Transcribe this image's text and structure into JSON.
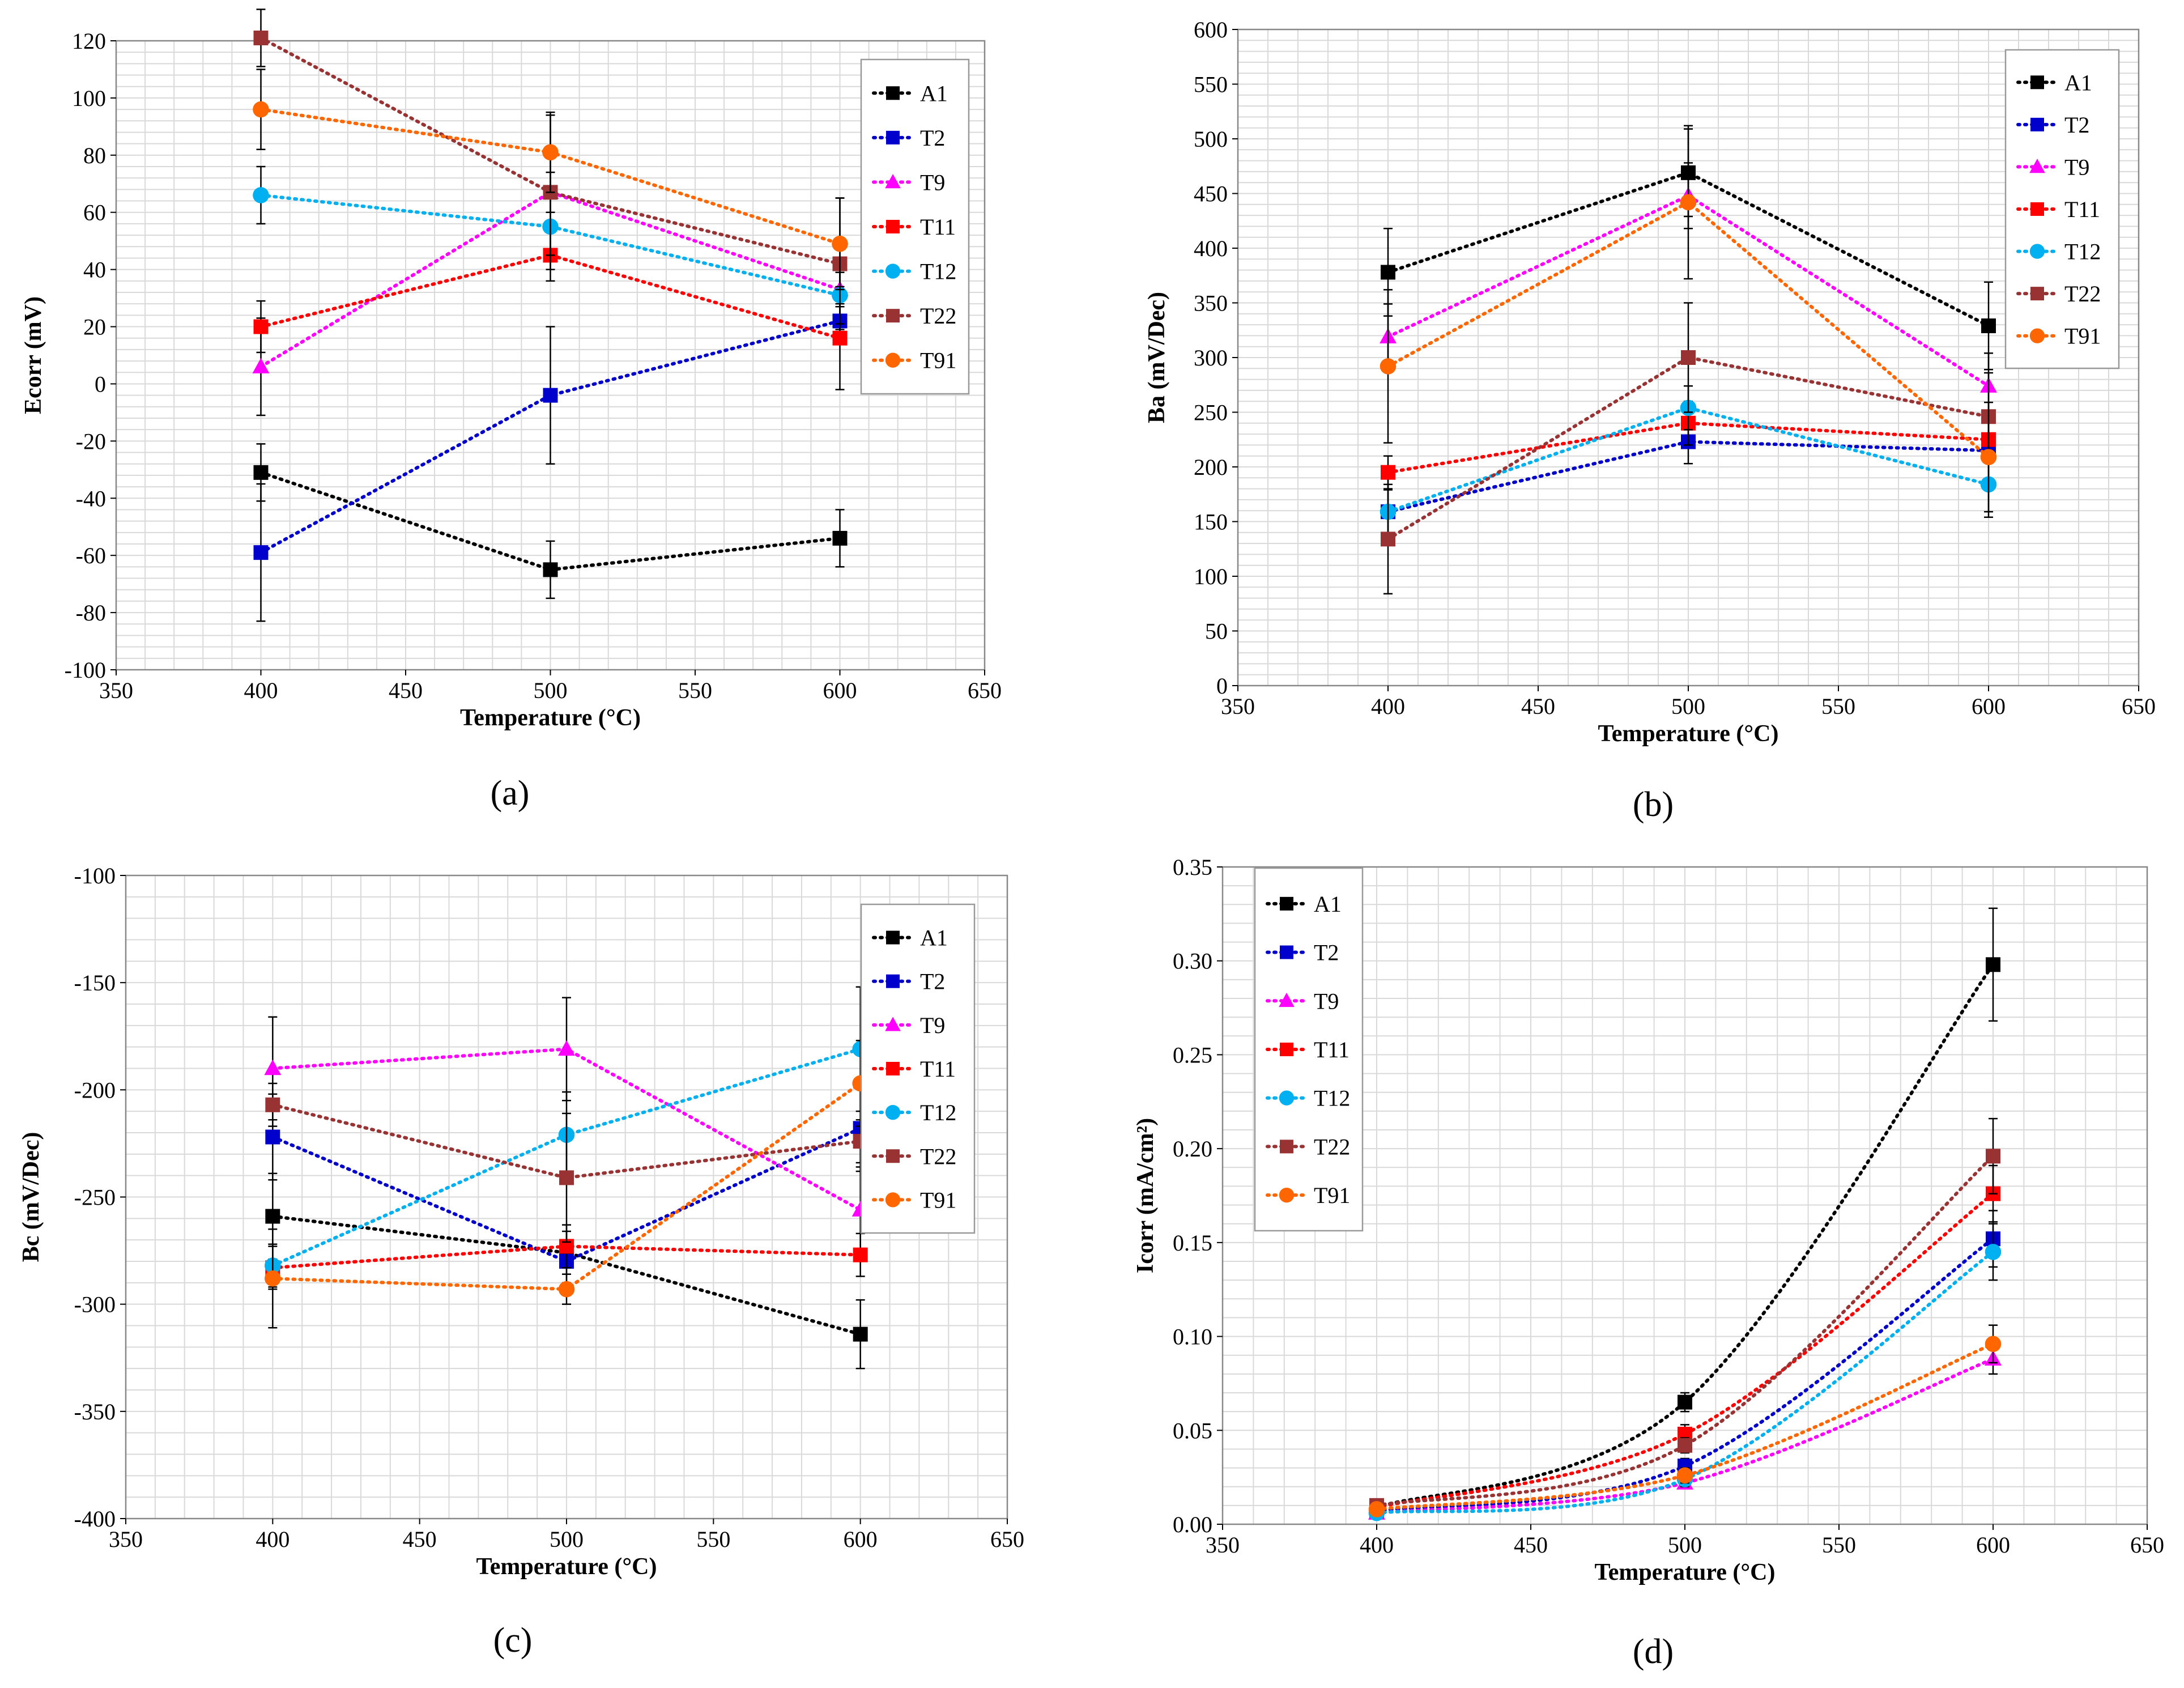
{
  "chart_data": [
    {
      "id": "a",
      "type": "line",
      "caption": "(a)",
      "xlabel": "Temperature (°C)",
      "ylabel": "Ecorr (mV)",
      "xlim": [
        350,
        650
      ],
      "ylim": [
        -100,
        120
      ],
      "xticks": [
        350,
        400,
        450,
        500,
        550,
        600,
        650
      ],
      "xtick_labels": [
        "350",
        "400",
        "450",
        "500",
        "550",
        "600",
        "650"
      ],
      "yticks": [
        -100,
        -80,
        -60,
        -40,
        -20,
        0,
        20,
        40,
        60,
        80,
        100,
        120
      ],
      "ytick_labels": [
        "-100",
        "-80",
        "-60",
        "-40",
        "-20",
        "0",
        "20",
        "40",
        "60",
        "80",
        "100",
        "120"
      ],
      "grid": true,
      "legend": "top-right",
      "x": [
        400,
        500,
        600
      ],
      "series": [
        {
          "name": "A1",
          "color": "#000000",
          "marker": "square",
          "values": [
            -31,
            -65,
            -54
          ],
          "err": [
            10,
            10,
            10
          ]
        },
        {
          "name": "T2",
          "color": "#0000cc",
          "marker": "square",
          "values": [
            -59,
            -4,
            22
          ],
          "err": [
            24,
            24,
            6
          ]
        },
        {
          "name": "T9",
          "color": "#ff00ff",
          "marker": "triangle",
          "values": [
            6,
            67,
            33
          ],
          "err": [
            17,
            7,
            6
          ]
        },
        {
          "name": "T11",
          "color": "#ff0000",
          "marker": "square",
          "values": [
            20,
            45,
            16
          ],
          "err": [
            9,
            9,
            18
          ]
        },
        {
          "name": "T12",
          "color": "#00b0f0",
          "marker": "circle",
          "values": [
            66,
            55,
            31
          ],
          "err": [
            10,
            10,
            10
          ]
        },
        {
          "name": "T22",
          "color": "#993333",
          "marker": "square",
          "values": [
            121,
            67,
            42
          ],
          "err": [
            10,
            27,
            23
          ]
        },
        {
          "name": "T91",
          "color": "#ff6600",
          "marker": "circle",
          "values": [
            96,
            81,
            49
          ],
          "err": [
            14,
            14,
            16
          ]
        }
      ]
    },
    {
      "id": "b",
      "type": "line",
      "caption": "(b)",
      "xlabel": "Temperature (°C)",
      "ylabel": "Ba (mV/Dec)",
      "xlim": [
        350,
        650
      ],
      "ylim": [
        0,
        600
      ],
      "xticks": [
        350,
        400,
        450,
        500,
        550,
        600,
        650
      ],
      "xtick_labels": [
        "350",
        "400",
        "450",
        "500",
        "550",
        "600",
        "650"
      ],
      "yticks": [
        0,
        50,
        100,
        150,
        200,
        250,
        300,
        350,
        400,
        450,
        500,
        550,
        600
      ],
      "ytick_labels": [
        "0",
        "50",
        "100",
        "150",
        "200",
        "250",
        "300",
        "350",
        "400",
        "450",
        "500",
        "550",
        "600"
      ],
      "grid": true,
      "legend": "top-right",
      "x": [
        400,
        500,
        600
      ],
      "series": [
        {
          "name": "A1",
          "color": "#000000",
          "marker": "square",
          "values": [
            378,
            469,
            329
          ],
          "err": [
            40,
            40,
            40
          ]
        },
        {
          "name": "T2",
          "color": "#0000cc",
          "marker": "square",
          "values": [
            159,
            223,
            215
          ],
          "err": [
            30,
            20,
            30
          ]
        },
        {
          "name": "T9",
          "color": "#ff00ff",
          "marker": "triangle",
          "values": [
            319,
            448,
            274
          ],
          "err": [
            30,
            30,
            30
          ]
        },
        {
          "name": "T11",
          "color": "#ff0000",
          "marker": "square",
          "values": [
            195,
            240,
            225
          ],
          "err": [
            15,
            20,
            20
          ]
        },
        {
          "name": "T12",
          "color": "#00b0f0",
          "marker": "circle",
          "values": [
            159,
            254,
            184
          ],
          "err": [
            20,
            20,
            30
          ]
        },
        {
          "name": "T22",
          "color": "#993333",
          "marker": "square",
          "values": [
            134,
            300,
            246
          ],
          "err": [
            50,
            50,
            40
          ]
        },
        {
          "name": "T91",
          "color": "#ff6600",
          "marker": "circle",
          "values": [
            292,
            442,
            209
          ],
          "err": [
            70,
            70,
            50
          ]
        }
      ]
    },
    {
      "id": "c",
      "type": "line",
      "caption": "(c)",
      "xlabel": "Temperature (°C)",
      "ylabel": "Bc (mV/Dec)",
      "xlim": [
        350,
        650
      ],
      "ylim": [
        -400,
        -100
      ],
      "xticks": [
        350,
        400,
        450,
        500,
        550,
        600,
        650
      ],
      "xtick_labels": [
        "350",
        "400",
        "450",
        "500",
        "550",
        "600",
        "650"
      ],
      "yticks": [
        -400,
        -350,
        -300,
        -250,
        -200,
        -150,
        -100
      ],
      "ytick_labels": [
        "-400",
        "-350",
        "-300",
        "-250",
        "-200",
        "-150",
        "-100"
      ],
      "grid": true,
      "legend": "top-right",
      "x": [
        400,
        500,
        600
      ],
      "series": [
        {
          "name": "A1",
          "color": "#000000",
          "marker": "square",
          "values": [
            -259,
            -276,
            -314
          ],
          "err": [
            20,
            10,
            16
          ]
        },
        {
          "name": "T2",
          "color": "#0000cc",
          "marker": "square",
          "values": [
            -222,
            -280,
            -218
          ],
          "err": [
            20,
            10,
            20
          ]
        },
        {
          "name": "T9",
          "color": "#ff00ff",
          "marker": "triangle",
          "values": [
            -190,
            -181,
            -256
          ],
          "err": [
            24,
            24,
            20
          ]
        },
        {
          "name": "T11",
          "color": "#ff0000",
          "marker": "square",
          "values": [
            -283,
            -273,
            -277
          ],
          "err": [
            10,
            10,
            10
          ]
        },
        {
          "name": "T12",
          "color": "#00b0f0",
          "marker": "circle",
          "values": [
            -282,
            -221,
            -181
          ],
          "err": [
            10,
            20,
            29
          ]
        },
        {
          "name": "T22",
          "color": "#993333",
          "marker": "square",
          "values": [
            -207,
            -241,
            -224
          ],
          "err": [
            10,
            30,
            10
          ]
        },
        {
          "name": "T91",
          "color": "#ff6600",
          "marker": "circle",
          "values": [
            -288,
            -293,
            -197
          ],
          "err": [
            23,
            7,
            20
          ]
        }
      ]
    },
    {
      "id": "d",
      "type": "line",
      "caption": "(d)",
      "xlabel": "Temperature (°C)",
      "ylabel": "Icorr (mA/cm²)",
      "xlim": [
        350,
        650
      ],
      "ylim": [
        0,
        0.35
      ],
      "xticks": [
        350,
        400,
        450,
        500,
        550,
        600,
        650
      ],
      "xtick_labels": [
        "350",
        "400",
        "450",
        "500",
        "550",
        "600",
        "650"
      ],
      "yticks": [
        0,
        0.05,
        0.1,
        0.15,
        0.2,
        0.25,
        0.3,
        0.35
      ],
      "ytick_labels": [
        "0.00",
        "0.05",
        "0.10",
        "0.15",
        "0.20",
        "0.25",
        "0.30",
        "0.35"
      ],
      "grid": true,
      "legend": "top-left",
      "x": [
        400,
        500,
        600
      ],
      "series": [
        {
          "name": "A1",
          "color": "#000000",
          "marker": "square",
          "values": [
            0.009,
            0.065,
            0.298
          ],
          "err": [
            0.002,
            0.005,
            0.03
          ]
        },
        {
          "name": "T2",
          "color": "#0000cc",
          "marker": "square",
          "values": [
            0.007,
            0.031,
            0.152
          ],
          "err": [
            0.002,
            0.004,
            0.015
          ]
        },
        {
          "name": "T9",
          "color": "#ff00ff",
          "marker": "triangle",
          "values": [
            0.006,
            0.022,
            0.088
          ],
          "err": [
            0.002,
            0.003,
            0.008
          ]
        },
        {
          "name": "T11",
          "color": "#ff0000",
          "marker": "square",
          "values": [
            0.009,
            0.048,
            0.176
          ],
          "err": [
            0.002,
            0.005,
            0.015
          ]
        },
        {
          "name": "T12",
          "color": "#00b0f0",
          "marker": "circle",
          "values": [
            0.006,
            0.024,
            0.145
          ],
          "err": [
            0.002,
            0.004,
            0.015
          ]
        },
        {
          "name": "T22",
          "color": "#993333",
          "marker": "square",
          "values": [
            0.01,
            0.042,
            0.196
          ],
          "err": [
            0.002,
            0.004,
            0.02
          ]
        },
        {
          "name": "T91",
          "color": "#ff6600",
          "marker": "circle",
          "values": [
            0.008,
            0.026,
            0.096
          ],
          "err": [
            0.002,
            0.004,
            0.01
          ]
        }
      ]
    }
  ]
}
